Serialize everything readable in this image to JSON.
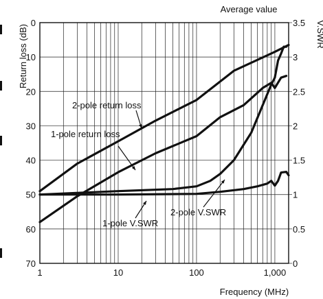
{
  "chart_data": {
    "type": "line",
    "title": "Average value",
    "xlabel": "Frequency (MHz)",
    "ylabel_left": "Return loss (dB)",
    "ylabel_right": "V.SWR",
    "x_scale": "log",
    "xlim": [
      1,
      1500
    ],
    "ylim_left": [
      70,
      0
    ],
    "ylim_right": [
      0,
      3.5
    ],
    "grid": true,
    "x_ticks": [
      1,
      10,
      100,
      1000
    ],
    "x_tick_labels": [
      "1",
      "10",
      "100",
      "1,000"
    ],
    "y_left_ticks": [
      0,
      10,
      20,
      30,
      40,
      50,
      60,
      70
    ],
    "y_left_tick_labels": [
      "0",
      "10",
      "20",
      "30",
      "40",
      "50",
      "60",
      "70"
    ],
    "y_right_ticks": [
      3.5,
      3,
      2.5,
      2,
      1.5,
      1,
      0.5,
      0
    ],
    "y_right_tick_labels": [
      "3.5",
      "3",
      "2.5",
      "2",
      "1.5",
      "1",
      "0.5",
      "0"
    ],
    "series": [
      {
        "name": "2-pole return loss",
        "axis": "left",
        "points": [
          [
            1,
            49
          ],
          [
            3,
            41
          ],
          [
            10,
            34.5
          ],
          [
            30,
            28.5
          ],
          [
            100,
            22.5
          ],
          [
            300,
            14
          ],
          [
            1000,
            8.5
          ],
          [
            1500,
            6.5
          ]
        ]
      },
      {
        "name": "1-pole return loss",
        "axis": "left",
        "points": [
          [
            1,
            58
          ],
          [
            3,
            50.5
          ],
          [
            10,
            43.5
          ],
          [
            30,
            38
          ],
          [
            100,
            33
          ],
          [
            200,
            27.5
          ],
          [
            400,
            24
          ],
          [
            700,
            19
          ],
          [
            900,
            17.5
          ],
          [
            1000,
            19
          ],
          [
            1200,
            16
          ],
          [
            1400,
            15.5
          ]
        ]
      },
      {
        "name": "2-pole V.SWR",
        "axis": "right",
        "points": [
          [
            1,
            1.0
          ],
          [
            10,
            1.05
          ],
          [
            50,
            1.08
          ],
          [
            100,
            1.12
          ],
          [
            150,
            1.2
          ],
          [
            200,
            1.3
          ],
          [
            300,
            1.5
          ],
          [
            500,
            1.9
          ],
          [
            700,
            2.3
          ],
          [
            900,
            2.6
          ],
          [
            1000,
            2.7
          ],
          [
            1100,
            2.95
          ],
          [
            1200,
            3.05
          ],
          [
            1300,
            3.15
          ],
          [
            1400,
            3.15
          ]
        ]
      },
      {
        "name": "1-pole V.SWR",
        "axis": "right",
        "points": [
          [
            1,
            1.0
          ],
          [
            10,
            1.0
          ],
          [
            100,
            1.01
          ],
          [
            200,
            1.04
          ],
          [
            400,
            1.08
          ],
          [
            600,
            1.12
          ],
          [
            800,
            1.16
          ],
          [
            900,
            1.2
          ],
          [
            1000,
            1.13
          ],
          [
            1100,
            1.2
          ],
          [
            1200,
            1.32
          ],
          [
            1400,
            1.33
          ],
          [
            1500,
            1.28
          ]
        ]
      }
    ],
    "annotations": [
      {
        "text": "2-pole return loss",
        "series": "2-pole return loss"
      },
      {
        "text": "1-pole return loss",
        "series": "1-pole return loss"
      },
      {
        "text": "1-pole V.SWR",
        "series": "1-pole V.SWR"
      },
      {
        "text": "2-pole V.SWR",
        "series": "2-pole V.SWR"
      }
    ]
  }
}
